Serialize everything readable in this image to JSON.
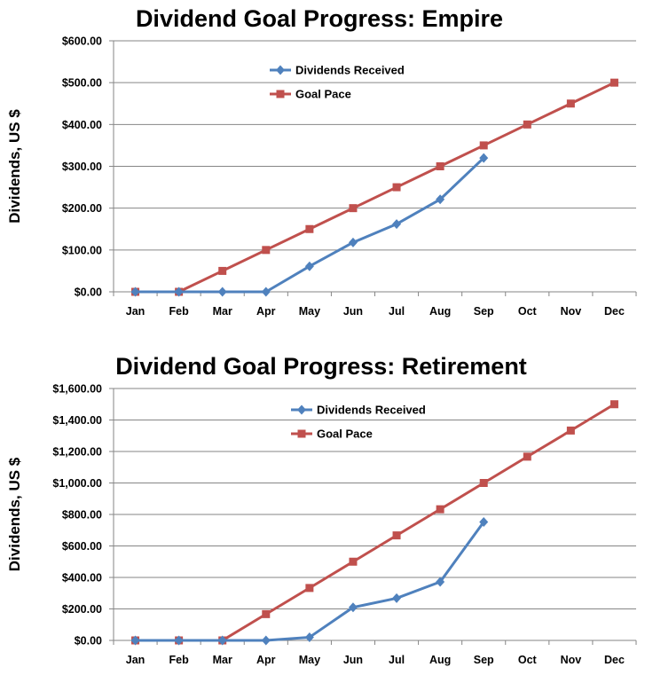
{
  "chart_data": [
    {
      "type": "line",
      "title": "Dividend Goal Progress: Empire",
      "ylabel": "Dividends, US $",
      "xlabel": "",
      "categories": [
        "Jan",
        "Feb",
        "Mar",
        "Apr",
        "May",
        "Jun",
        "Jul",
        "Aug",
        "Sep",
        "Oct",
        "Nov",
        "Dec"
      ],
      "ylim": [
        0,
        600
      ],
      "yticks": [
        0,
        100,
        200,
        300,
        400,
        500,
        600
      ],
      "ytick_labels": [
        "$0.00",
        "$100.00",
        "$200.00",
        "$300.00",
        "$400.00",
        "$500.00",
        "$600.00"
      ],
      "grid": "horizontal",
      "legend": "top-center",
      "series": [
        {
          "name": "Dividends Received",
          "color": "#4F81BD",
          "marker": "diamond",
          "values": [
            0,
            0,
            0,
            0,
            61,
            118,
            162,
            221,
            320,
            null,
            null,
            null
          ]
        },
        {
          "name": "Goal Pace",
          "color": "#C0504D",
          "marker": "square",
          "values": [
            0,
            0,
            50,
            100,
            150,
            200,
            250,
            300,
            350,
            400,
            450,
            500
          ]
        }
      ]
    },
    {
      "type": "line",
      "title": "Dividend Goal Progress: Retirement",
      "ylabel": "Dividends, US $",
      "xlabel": "",
      "categories": [
        "Jan",
        "Feb",
        "Mar",
        "Apr",
        "May",
        "Jun",
        "Jul",
        "Aug",
        "Sep",
        "Oct",
        "Nov",
        "Dec"
      ],
      "ylim": [
        0,
        1600
      ],
      "yticks": [
        0,
        200,
        400,
        600,
        800,
        1000,
        1200,
        1400,
        1600
      ],
      "ytick_labels": [
        "$0.00",
        "$200.00",
        "$400.00",
        "$600.00",
        "$800.00",
        "$1,000.00",
        "$1,200.00",
        "$1,400.00",
        "$1,600.00"
      ],
      "grid": "horizontal",
      "legend": "top-center",
      "series": [
        {
          "name": "Dividends Received",
          "color": "#4F81BD",
          "marker": "diamond",
          "values": [
            0,
            0,
            0,
            0,
            20,
            210,
            268,
            372,
            752,
            null,
            null,
            null
          ]
        },
        {
          "name": "Goal Pace",
          "color": "#C0504D",
          "marker": "square",
          "values": [
            0,
            0,
            0,
            167,
            333,
            500,
            667,
            833,
            1000,
            1167,
            1333,
            1500
          ]
        }
      ]
    }
  ]
}
